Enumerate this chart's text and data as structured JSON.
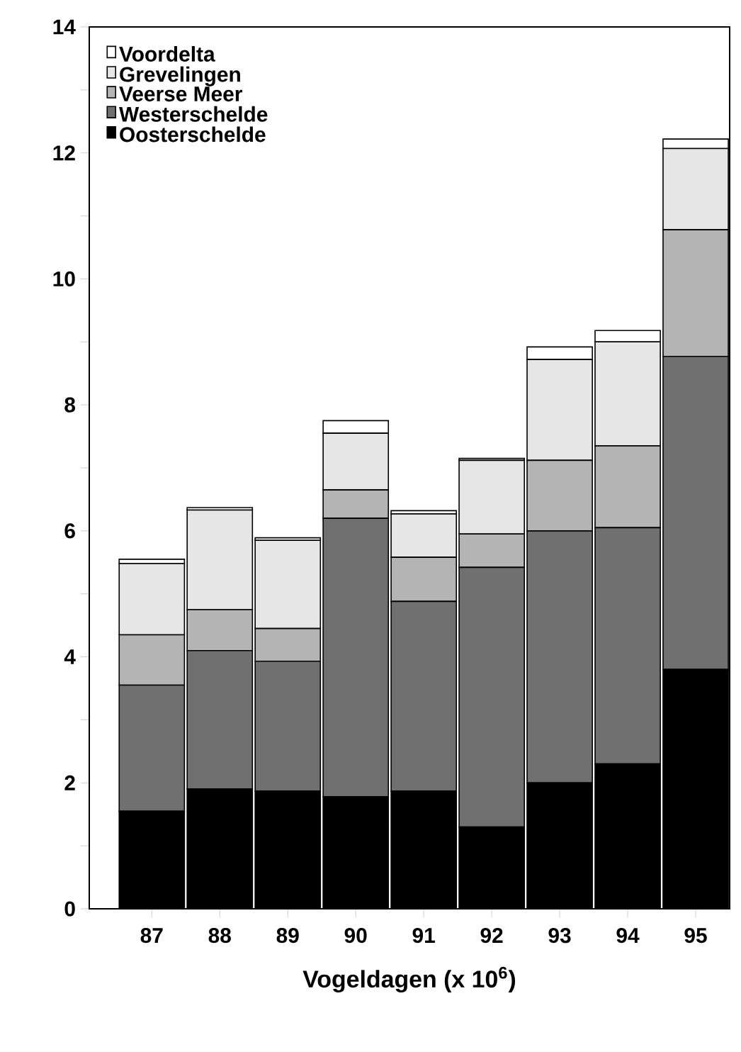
{
  "chart_data": {
    "type": "bar",
    "stacked": true,
    "xlabel": "Vogeldagen (x 10$^{6}$)",
    "categories": [
      "87",
      "88",
      "89",
      "90",
      "91",
      "92",
      "93",
      "94",
      "95"
    ],
    "series": [
      {
        "name": "Oosterschelde",
        "color": "#000000",
        "values": [
          1.55,
          1.9,
          1.87,
          1.78,
          1.87,
          1.3,
          2.0,
          2.3,
          3.8
        ]
      },
      {
        "name": "Westerschelde",
        "color": "#707070",
        "values": [
          2.0,
          2.2,
          2.06,
          4.42,
          3.01,
          4.12,
          4.0,
          3.75,
          4.97
        ]
      },
      {
        "name": "Veerse Meer",
        "color": "#b4b4b4",
        "values": [
          0.8,
          0.65,
          0.52,
          0.45,
          0.7,
          0.53,
          1.12,
          1.3,
          2.01
        ]
      },
      {
        "name": "Grevelingen",
        "color": "#e6e6e6",
        "values": [
          1.13,
          1.58,
          1.4,
          0.9,
          0.69,
          1.17,
          1.6,
          1.65,
          1.29
        ]
      },
      {
        "name": "Voordelta",
        "color": "#ffffff",
        "values": [
          0.07,
          0.04,
          0.04,
          0.2,
          0.05,
          0.03,
          0.2,
          0.18,
          0.15
        ]
      }
    ],
    "ylim": [
      0,
      14
    ],
    "yticks": [
      0,
      {
        "value": 1,
        "label": null
      },
      2,
      {
        "value": 3,
        "label": null
      },
      4,
      {
        "value": 5,
        "label": null
      },
      6,
      {
        "value": 7,
        "label": null
      },
      8,
      {
        "value": 9,
        "label": null
      },
      10,
      {
        "value": 11,
        "label": null
      },
      12,
      {
        "value": 13,
        "label": null
      },
      14
    ],
    "legend": "top left",
    "grid": false
  }
}
